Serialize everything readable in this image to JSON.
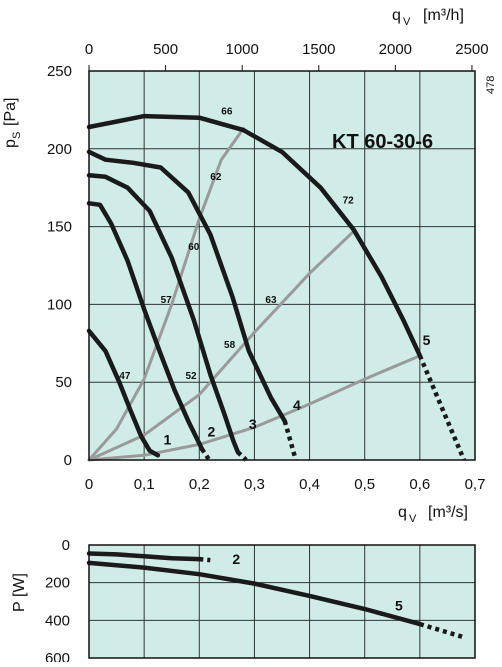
{
  "chart_data": [
    {
      "type": "line",
      "title": "KT  60-30-6",
      "corner_note": "478",
      "xlabel_bottom": "q",
      "xlabel_bottom_sub": "V",
      "xlabel_bottom_unit": "[m³/s]",
      "xlabel_top": "q",
      "xlabel_top_sub": "V",
      "xlabel_top_unit": "[m³/h]",
      "ylabel": "p",
      "ylabel_sub": "S",
      "ylabel_unit": "[Pa]",
      "xlim": [
        0,
        0.7
      ],
      "ylim": [
        0,
        250
      ],
      "top_xlim": [
        0,
        2500
      ],
      "x_ticks": [
        "0",
        "0,1",
        "0,2",
        "0,3",
        "0,4",
        "0,5",
        "0,6",
        "0,7"
      ],
      "top_ticks": [
        "0",
        "500",
        "1000",
        "1500",
        "2000",
        "2500"
      ],
      "y_ticks": [
        "0",
        "50",
        "100",
        "150",
        "200",
        "250"
      ],
      "grid": true,
      "background": "#cfece6",
      "series": [
        {
          "name": "1",
          "points": [
            [
              0,
              83
            ],
            [
              0.03,
              70
            ],
            [
              0.055,
              50
            ],
            [
              0.075,
              32
            ],
            [
              0.095,
              15
            ],
            [
              0.11,
              6
            ],
            [
              0.125,
              3
            ]
          ]
        },
        {
          "name": "2",
          "points": [
            [
              0,
              165
            ],
            [
              0.02,
              164
            ],
            [
              0.04,
              152
            ],
            [
              0.07,
              128
            ],
            [
              0.1,
              97
            ],
            [
              0.13,
              68
            ],
            [
              0.155,
              45
            ],
            [
              0.18,
              25
            ],
            [
              0.198,
              12
            ],
            [
              0.205,
              7
            ]
          ],
          "dashed_tail": [
            [
              0.205,
              7
            ],
            [
              0.218,
              0
            ]
          ]
        },
        {
          "name": "3",
          "points": [
            [
              0,
              183
            ],
            [
              0.03,
              182
            ],
            [
              0.07,
              175
            ],
            [
              0.11,
              160
            ],
            [
              0.15,
              130
            ],
            [
              0.19,
              90
            ],
            [
              0.22,
              55
            ],
            [
              0.245,
              30
            ],
            [
              0.262,
              12
            ],
            [
              0.27,
              5
            ]
          ],
          "dashed_tail": [
            [
              0.27,
              5
            ],
            [
              0.285,
              0
            ]
          ]
        },
        {
          "name": "4",
          "points": [
            [
              0,
              198
            ],
            [
              0.03,
              193
            ],
            [
              0.08,
              191
            ],
            [
              0.13,
              188
            ],
            [
              0.18,
              172
            ],
            [
              0.22,
              145
            ],
            [
              0.26,
              105
            ],
            [
              0.29,
              70
            ],
            [
              0.33,
              40
            ],
            [
              0.355,
              25
            ]
          ],
          "dashed_tail": [
            [
              0.355,
              25
            ],
            [
              0.375,
              0
            ]
          ]
        },
        {
          "name": "5",
          "points": [
            [
              0,
              214
            ],
            [
              0.1,
              221
            ],
            [
              0.2,
              220
            ],
            [
              0.28,
              212
            ],
            [
              0.35,
              198
            ],
            [
              0.42,
              175
            ],
            [
              0.48,
              148
            ],
            [
              0.53,
              118
            ],
            [
              0.57,
              90
            ],
            [
              0.6,
              67
            ]
          ],
          "dashed_tail": [
            [
              0.6,
              67
            ],
            [
              0.68,
              0
            ]
          ]
        }
      ],
      "system_curves": [
        {
          "points": [
            [
              0,
              0
            ],
            [
              0.05,
              20
            ],
            [
              0.1,
              52
            ],
            [
              0.15,
              100
            ],
            [
              0.2,
              155
            ],
            [
              0.24,
              193
            ],
            [
              0.28,
              213
            ]
          ]
        },
        {
          "points": [
            [
              0,
              0
            ],
            [
              0.1,
              16
            ],
            [
              0.2,
              42
            ],
            [
              0.3,
              82
            ],
            [
              0.4,
              120
            ],
            [
              0.48,
              147
            ]
          ]
        },
        {
          "points": [
            [
              0,
              0
            ],
            [
              0.1,
              3
            ],
            [
              0.2,
              10
            ],
            [
              0.3,
              21
            ],
            [
              0.4,
              36
            ],
            [
              0.5,
              52
            ],
            [
              0.6,
              67
            ]
          ]
        }
      ],
      "efficiency_labels": [
        {
          "text": "66",
          "x": 0.25,
          "y": 222
        },
        {
          "text": "62",
          "x": 0.23,
          "y": 180
        },
        {
          "text": "60",
          "x": 0.19,
          "y": 135
        },
        {
          "text": "57",
          "x": 0.14,
          "y": 101
        },
        {
          "text": "58",
          "x": 0.255,
          "y": 72
        },
        {
          "text": "63",
          "x": 0.33,
          "y": 101
        },
        {
          "text": "72",
          "x": 0.47,
          "y": 165
        },
        {
          "text": "52",
          "x": 0.185,
          "y": 52
        },
        {
          "text": "47",
          "x": 0.065,
          "y": 52
        }
      ],
      "curve_labels": [
        {
          "text": "1",
          "x": 0.135,
          "y": 10
        },
        {
          "text": "2",
          "x": 0.215,
          "y": 15
        },
        {
          "text": "3",
          "x": 0.29,
          "y": 20
        },
        {
          "text": "4",
          "x": 0.37,
          "y": 32
        },
        {
          "text": "5",
          "x": 0.605,
          "y": 74
        }
      ]
    },
    {
      "type": "line",
      "ylabel": "P",
      "ylabel_unit": "[W]",
      "xlim": [
        0,
        0.7
      ],
      "ylim": [
        0,
        600
      ],
      "y_inverted": true,
      "y_ticks": [
        "0",
        "200",
        "400",
        "600"
      ],
      "grid": true,
      "background": "#cfece6",
      "series": [
        {
          "name": "2",
          "points": [
            [
              0,
              45
            ],
            [
              0.05,
              50
            ],
            [
              0.1,
              60
            ],
            [
              0.15,
              70
            ],
            [
              0.2,
              75
            ]
          ],
          "dashed_tail": [
            [
              0.2,
              75
            ],
            [
              0.22,
              80
            ]
          ]
        },
        {
          "name": "5",
          "points": [
            [
              0,
              95
            ],
            [
              0.1,
              120
            ],
            [
              0.2,
              155
            ],
            [
              0.3,
              205
            ],
            [
              0.4,
              270
            ],
            [
              0.5,
              340
            ],
            [
              0.6,
              420
            ]
          ],
          "dashed_tail": [
            [
              0.6,
              420
            ],
            [
              0.68,
              490
            ]
          ]
        }
      ],
      "curve_labels": [
        {
          "text": "2",
          "x": 0.26,
          "y": 75
        },
        {
          "text": "5",
          "x": 0.555,
          "y": 320
        }
      ]
    }
  ]
}
